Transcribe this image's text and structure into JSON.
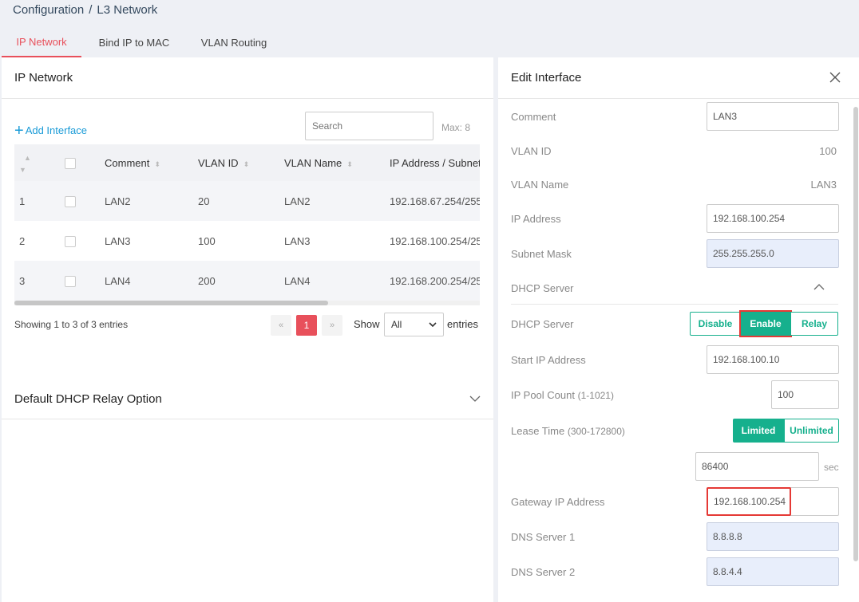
{
  "breadcrumb": {
    "root": "Configuration",
    "sep": "/",
    "current": "L3 Network"
  },
  "tabs": [
    {
      "label": "IP Network"
    },
    {
      "label": "Bind IP to MAC"
    },
    {
      "label": "VLAN Routing"
    }
  ],
  "left": {
    "title": "IP Network",
    "add_label": "Add Interface",
    "search_placeholder": "Search",
    "max_label": "Max: 8",
    "columns": [
      "Comment",
      "VLAN ID",
      "VLAN Name",
      "IP Address / Subnet"
    ],
    "rows": [
      {
        "idx": "1",
        "comment": "LAN2",
        "vlan_id": "20",
        "vlan_name": "LAN2",
        "ip": "192.168.67.254/255."
      },
      {
        "idx": "2",
        "comment": "LAN3",
        "vlan_id": "100",
        "vlan_name": "LAN3",
        "ip": "192.168.100.254/255"
      },
      {
        "idx": "3",
        "comment": "LAN4",
        "vlan_id": "200",
        "vlan_name": "LAN4",
        "ip": "192.168.200.254/25"
      }
    ],
    "showing": "Showing 1 to 3 of 3 entries",
    "pager": {
      "prev": "«",
      "page": "1",
      "next": "»"
    },
    "show_label": "Show",
    "show_value": "All",
    "entries_label": "entries",
    "relay_title": "Default DHCP Relay Option"
  },
  "edit": {
    "title": "Edit Interface",
    "comment_label": "Comment",
    "comment_value": "LAN3",
    "vlan_id_label": "VLAN ID",
    "vlan_id_value": "100",
    "vlan_name_label": "VLAN Name",
    "vlan_name_value": "LAN3",
    "ip_label": "IP Address",
    "ip_value": "192.168.100.254",
    "mask_label": "Subnet Mask",
    "mask_value": "255.255.255.0",
    "dhcp_section": "DHCP Server",
    "dhcp_label": "DHCP Server",
    "dhcp_options": [
      "Disable",
      "Enable",
      "Relay"
    ],
    "start_label": "Start IP Address",
    "start_value": "192.168.100.10",
    "pool_label": "IP Pool Count",
    "pool_range": "(1-1021)",
    "pool_value": "100",
    "lease_label": "Lease Time",
    "lease_range": "(300-172800)",
    "lease_options": [
      "Limited",
      "Unlimited"
    ],
    "lease_value": "86400",
    "lease_unit": "sec",
    "gateway_label": "Gateway IP Address",
    "gateway_value": "192.168.100.254",
    "dns1_label": "DNS Server 1",
    "dns1_value": "8.8.8.8",
    "dns2_label": "DNS Server 2",
    "dns2_value": "8.8.4.4"
  },
  "colors": {
    "accent": "#e8505b",
    "green": "#16b08d",
    "link": "#1a9bd7",
    "highlight": "#e53935"
  }
}
